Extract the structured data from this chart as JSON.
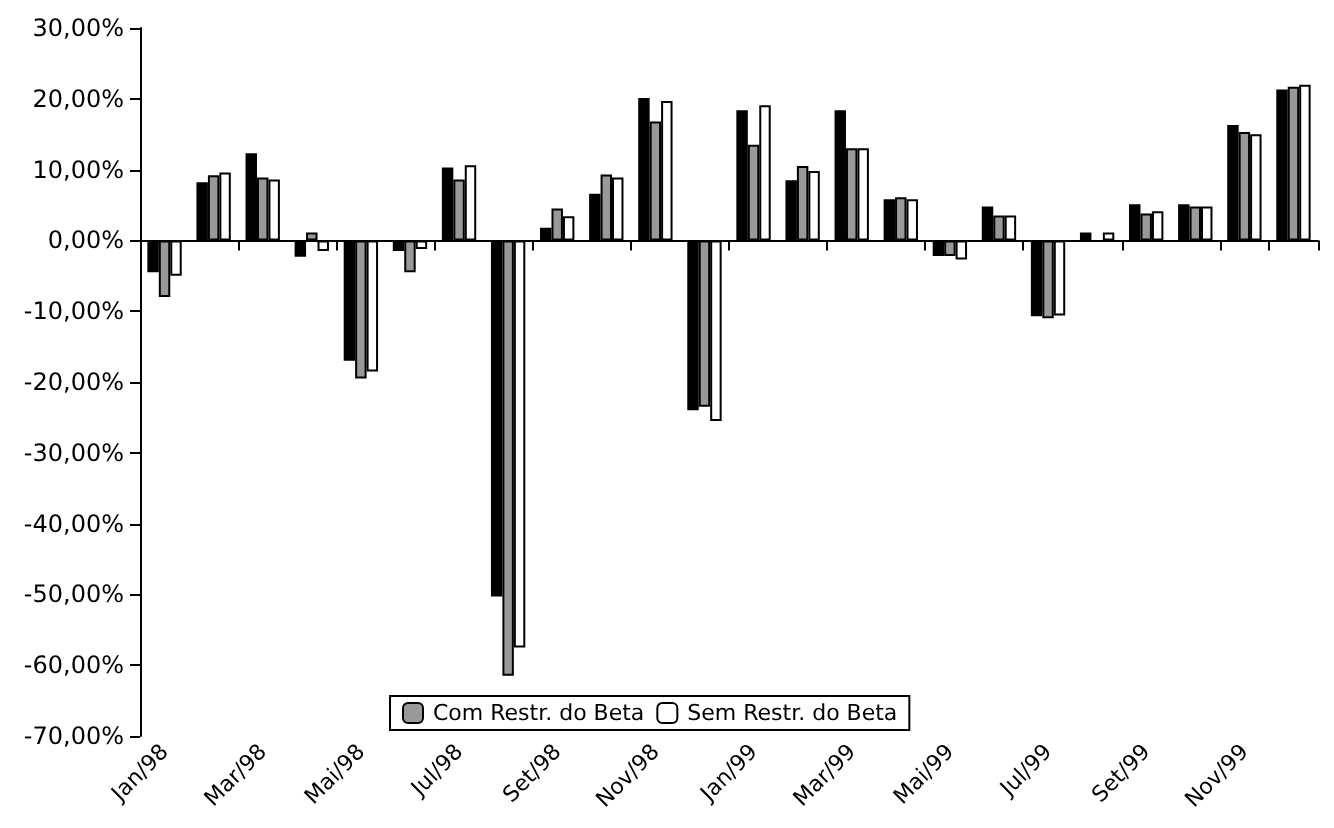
{
  "chart_data": {
    "type": "bar",
    "categories": [
      "Jan/98",
      null,
      "Mar/98",
      null,
      "Mai/98",
      null,
      "Jul/98",
      null,
      "Set/98",
      null,
      "Nov/98",
      null,
      "Jan/99",
      null,
      "Mar/99",
      null,
      "Mai/99",
      null,
      "Jul/99",
      null,
      "Set/99",
      null,
      "Nov/99",
      null
    ],
    "series": [
      {
        "color": "#000000",
        "values": [
          -4.5,
          8.2,
          12.3,
          -2.3,
          -17,
          -1.5,
          10.3,
          -50.3,
          1.8,
          6.6,
          20.1,
          -24,
          18.4,
          8.5,
          18.4,
          5.8,
          -2.2,
          4.8,
          -10.7,
          1.1,
          5.1,
          5.1,
          16.3,
          21.3
        ]
      },
      {
        "name": "Com Restr. do Beta",
        "color": "#999999",
        "values": [
          -8,
          9.2,
          8.9,
          1.1,
          -19.5,
          -4.5,
          8.6,
          -61.5,
          4.5,
          9.3,
          16.8,
          -23.5,
          13.5,
          10.5,
          13,
          6.1,
          -2.2,
          3.5,
          -11,
          0,
          3.8,
          4.8,
          15.3,
          21.7
        ]
      },
      {
        "name": "Sem Restr. do Beta",
        "color": "#ffffff",
        "values": [
          -5,
          9.6,
          8.6,
          -1.5,
          -18.5,
          -1.2,
          10.6,
          -57.5,
          3.4,
          8.9,
          19.7,
          -25.5,
          19.1,
          9.8,
          13,
          5.8,
          -2.7,
          3.5,
          -10.6,
          1.1,
          4.1,
          4.8,
          15,
          22
        ]
      }
    ],
    "ylim": [
      -70,
      30
    ],
    "yticks": [
      {
        "value": -70,
        "label": "-70,00%"
      },
      {
        "value": -60,
        "label": "-60,00%"
      },
      {
        "value": -50,
        "label": "-50,00%"
      },
      {
        "value": -40,
        "label": "-40,00%"
      },
      {
        "value": -30,
        "label": "-30,00%"
      },
      {
        "value": -20,
        "label": "-20,00%"
      },
      {
        "value": -10,
        "label": "-10,00%"
      },
      {
        "value": 0,
        "label": "0,00%"
      },
      {
        "value": 10,
        "label": "10,00%"
      },
      {
        "value": 20,
        "label": "20,00%"
      },
      {
        "value": 30,
        "label": "30,00%"
      }
    ],
    "legend": "bottom"
  }
}
